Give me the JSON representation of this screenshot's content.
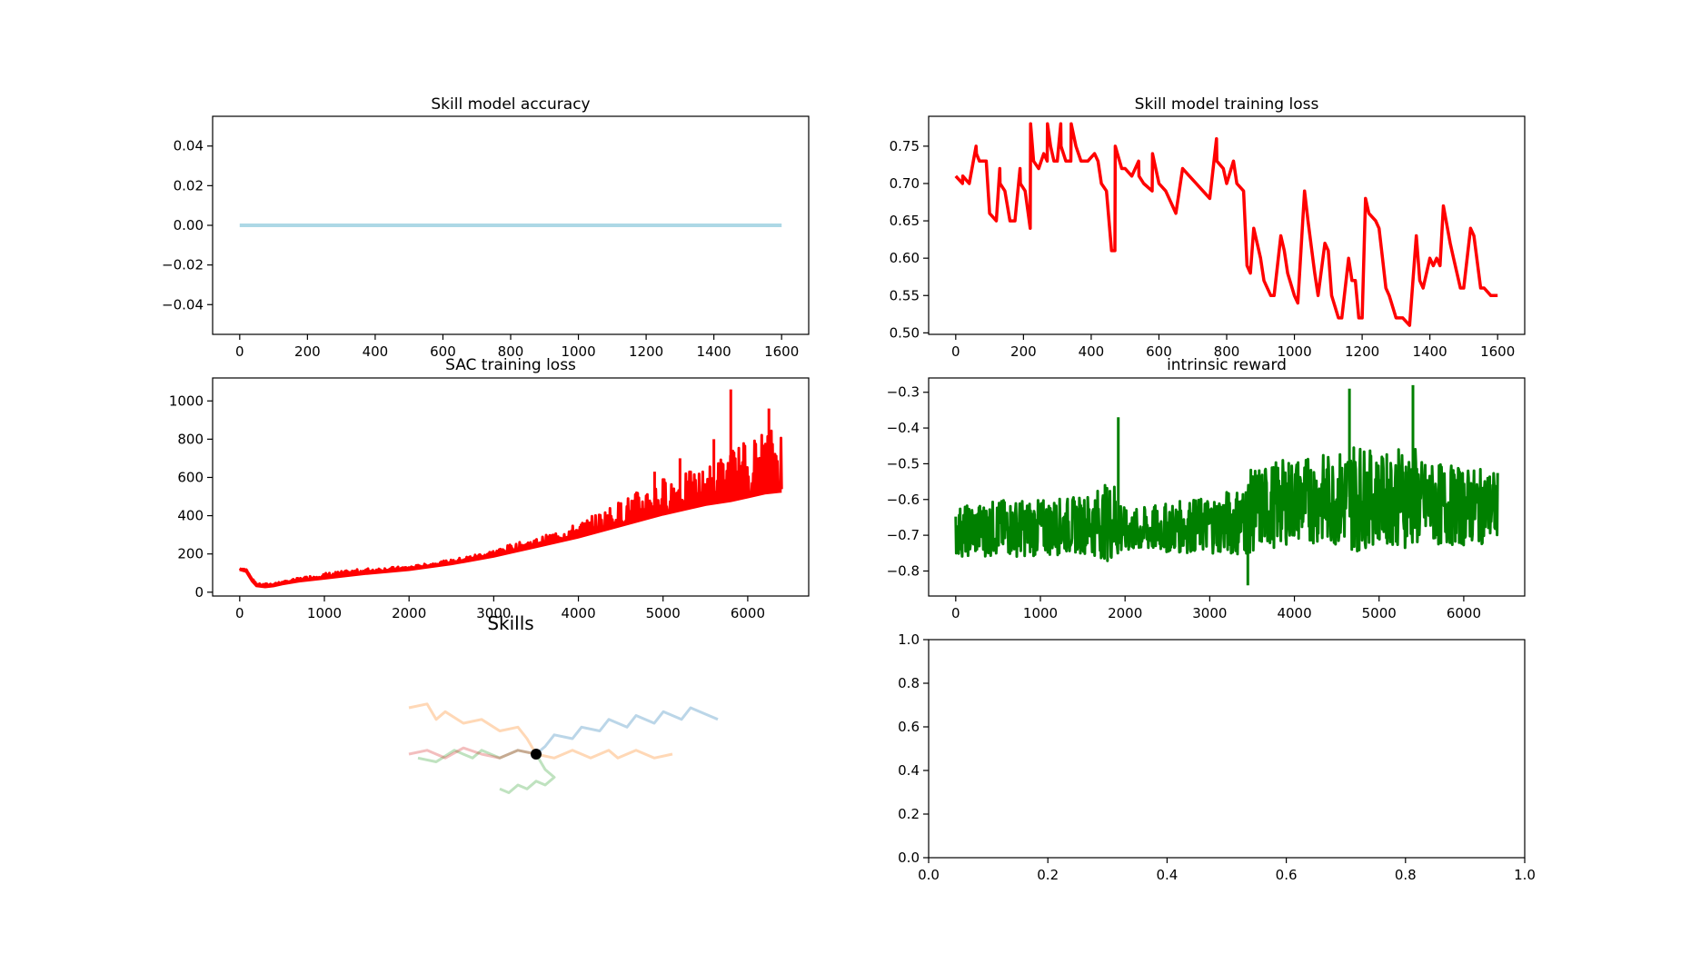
{
  "chart_data": [
    {
      "id": "skill-model-accuracy",
      "type": "line",
      "title": "Skill model accuracy",
      "xlabel": "",
      "ylabel": "",
      "xlim": [
        -80,
        1680
      ],
      "ylim": [
        -0.055,
        0.055
      ],
      "x_ticks": [
        0,
        200,
        400,
        600,
        800,
        1000,
        1200,
        1400,
        1600
      ],
      "y_ticks": [
        -0.04,
        -0.02,
        0.0,
        0.02,
        0.04
      ],
      "x_tick_labels": [
        "0",
        "200",
        "400",
        "600",
        "800",
        "1000",
        "1200",
        "1400",
        "1600"
      ],
      "y_tick_labels": [
        "−0.04",
        "−0.02",
        "0.00",
        "0.02",
        "0.04"
      ],
      "grid": false,
      "series": [
        {
          "color": "#add8e6",
          "x": [
            0,
            1600
          ],
          "values": [
            0.0,
            0.0
          ]
        }
      ]
    },
    {
      "id": "skill-model-training-loss",
      "type": "line",
      "title": "Skill model training loss",
      "xlabel": "",
      "ylabel": "",
      "xlim": [
        -80,
        1680
      ],
      "ylim": [
        0.498,
        0.79
      ],
      "x_ticks": [
        0,
        200,
        400,
        600,
        800,
        1000,
        1200,
        1400,
        1600
      ],
      "y_ticks": [
        0.5,
        0.55,
        0.6,
        0.65,
        0.7,
        0.75
      ],
      "x_tick_labels": [
        "0",
        "200",
        "400",
        "600",
        "800",
        "1000",
        "1200",
        "1400",
        "1600"
      ],
      "y_tick_labels": [
        "0.50",
        "0.55",
        "0.60",
        "0.65",
        "0.70",
        "0.75"
      ],
      "grid": false,
      "series": [
        {
          "color": "#ff0000",
          "x": [
            0,
            20,
            21,
            40,
            60,
            61,
            70,
            90,
            100,
            120,
            130,
            131,
            145,
            160,
            175,
            190,
            191,
            205,
            220,
            221,
            230,
            245,
            260,
            270,
            271,
            280,
            290,
            300,
            310,
            311,
            325,
            340,
            341,
            355,
            370,
            390,
            410,
            420,
            430,
            445,
            460,
            470,
            471,
            490,
            500,
            520,
            540,
            541,
            555,
            580,
            581,
            600,
            620,
            640,
            650,
            670,
            690,
            710,
            730,
            750,
            770,
            771,
            790,
            800,
            820,
            830,
            850,
            860,
            870,
            880,
            900,
            910,
            930,
            940,
            960,
            970,
            980,
            1000,
            1010,
            1030,
            1040,
            1060,
            1070,
            1090,
            1100,
            1110,
            1130,
            1140,
            1160,
            1170,
            1180,
            1190,
            1200,
            1210,
            1220,
            1240,
            1250,
            1260,
            1270,
            1280,
            1300,
            1320,
            1340,
            1360,
            1370,
            1380,
            1400,
            1410,
            1420,
            1430,
            1440,
            1460,
            1470,
            1490,
            1500,
            1520,
            1530,
            1550,
            1560,
            1580,
            1600
          ],
          "values": [
            0.71,
            0.7,
            0.71,
            0.7,
            0.75,
            0.74,
            0.73,
            0.73,
            0.66,
            0.65,
            0.72,
            0.7,
            0.69,
            0.65,
            0.65,
            0.72,
            0.7,
            0.69,
            0.64,
            0.78,
            0.73,
            0.72,
            0.74,
            0.73,
            0.78,
            0.75,
            0.73,
            0.73,
            0.78,
            0.75,
            0.73,
            0.73,
            0.78,
            0.75,
            0.73,
            0.73,
            0.74,
            0.73,
            0.7,
            0.69,
            0.61,
            0.61,
            0.75,
            0.72,
            0.72,
            0.71,
            0.73,
            0.71,
            0.7,
            0.69,
            0.74,
            0.7,
            0.69,
            0.67,
            0.66,
            0.72,
            0.71,
            0.7,
            0.69,
            0.68,
            0.76,
            0.73,
            0.72,
            0.7,
            0.73,
            0.7,
            0.69,
            0.59,
            0.58,
            0.64,
            0.6,
            0.57,
            0.55,
            0.55,
            0.63,
            0.61,
            0.58,
            0.55,
            0.54,
            0.69,
            0.65,
            0.58,
            0.55,
            0.62,
            0.61,
            0.55,
            0.52,
            0.52,
            0.6,
            0.57,
            0.57,
            0.52,
            0.52,
            0.68,
            0.66,
            0.65,
            0.64,
            0.6,
            0.56,
            0.55,
            0.52,
            0.52,
            0.51,
            0.63,
            0.57,
            0.56,
            0.6,
            0.59,
            0.6,
            0.59,
            0.67,
            0.62,
            0.6,
            0.56,
            0.56,
            0.64,
            0.63,
            0.56,
            0.56,
            0.55,
            0.55
          ]
        }
      ]
    },
    {
      "id": "sac-training-loss",
      "type": "line",
      "title": "SAC training loss",
      "xlabel": "",
      "ylabel": "",
      "xlim": [
        -320,
        6720
      ],
      "ylim": [
        -20,
        1120
      ],
      "x_ticks": [
        0,
        1000,
        2000,
        3000,
        4000,
        5000,
        6000
      ],
      "y_ticks": [
        0,
        200,
        400,
        600,
        800,
        1000
      ],
      "x_tick_labels": [
        "0",
        "1000",
        "2000",
        "3000",
        "4000",
        "5000",
        "6000"
      ],
      "y_tick_labels": [
        "0",
        "200",
        "400",
        "600",
        "800",
        "1000"
      ],
      "grid": false,
      "series": [
        {
          "color": "#ff0000",
          "x": [
            0,
            80,
            150,
            200,
            300,
            400,
            500,
            700,
            1000,
            1500,
            2000,
            2500,
            3000,
            3200,
            3500,
            4000,
            4500,
            5000,
            5500,
            5800,
            6000,
            6200,
            6400
          ],
          "values": [
            120,
            110,
            60,
            35,
            30,
            35,
            45,
            60,
            75,
            100,
            120,
            150,
            190,
            210,
            240,
            290,
            350,
            410,
            460,
            480,
            500,
            520,
            530
          ],
          "band_upper": [
            125,
            120,
            70,
            45,
            45,
            50,
            55,
            75,
            100,
            125,
            135,
            170,
            220,
            250,
            280,
            360,
            480,
            600,
            650,
            750,
            800,
            850,
            870
          ],
          "peaks": [
            {
              "x": 5800,
              "y": 1060
            },
            {
              "x": 6250,
              "y": 960
            },
            {
              "x": 5200,
              "y": 700
            },
            {
              "x": 4900,
              "y": 630
            },
            {
              "x": 5600,
              "y": 800
            }
          ]
        }
      ]
    },
    {
      "id": "intrinsic-reward",
      "type": "line",
      "title": "intrinsic reward",
      "xlabel": "",
      "ylabel": "",
      "xlim": [
        -320,
        6720
      ],
      "ylim": [
        -0.87,
        -0.26
      ],
      "x_ticks": [
        0,
        1000,
        2000,
        3000,
        4000,
        5000,
        6000
      ],
      "y_ticks": [
        -0.8,
        -0.7,
        -0.6,
        -0.5,
        -0.4,
        -0.3
      ],
      "x_tick_labels": [
        "0",
        "1000",
        "2000",
        "3000",
        "4000",
        "5000",
        "6000"
      ],
      "y_tick_labels": [
        "−0.8",
        "−0.7",
        "−0.6",
        "−0.5",
        "−0.4",
        "−0.3"
      ],
      "grid": false,
      "series": [
        {
          "color": "#008000",
          "x": [
            0,
            500,
            1000,
            1500,
            1900,
            2000,
            2500,
            3000,
            3400,
            3500,
            4000,
            4500,
            4700,
            5000,
            5400,
            5500,
            6000,
            6400
          ],
          "values": [
            -0.69,
            -0.68,
            -0.68,
            -0.67,
            -0.66,
            -0.69,
            -0.68,
            -0.67,
            -0.66,
            -0.63,
            -0.6,
            -0.6,
            -0.59,
            -0.6,
            -0.59,
            -0.61,
            -0.62,
            -0.62
          ],
          "band_half": [
            0.07,
            0.08,
            0.08,
            0.08,
            0.12,
            0.06,
            0.07,
            0.08,
            0.1,
            0.12,
            0.12,
            0.13,
            0.16,
            0.12,
            0.15,
            0.12,
            0.11,
            0.1
          ],
          "peaks": [
            {
              "x": 1920,
              "y": -0.37
            },
            {
              "x": 4650,
              "y": -0.29
            },
            {
              "x": 5400,
              "y": -0.28
            },
            {
              "x": 3450,
              "y": -0.84
            }
          ]
        }
      ]
    },
    {
      "id": "skills",
      "type": "line",
      "title": "Skills",
      "xlabel": "",
      "ylabel": "",
      "axis_visible": false,
      "xlim": [
        -1,
        1
      ],
      "ylim": [
        -1,
        1
      ],
      "origin_marker": {
        "x": 0,
        "y": 0,
        "color": "#000000"
      },
      "series": [
        {
          "color": "#1f77b4",
          "opacity": 0.3,
          "x": [
            0,
            0.05,
            0.1,
            0.2,
            0.25,
            0.35,
            0.4,
            0.5,
            0.55,
            0.65,
            0.7,
            0.8,
            0.85,
            0.95,
            1.0
          ],
          "values": [
            0,
            0.1,
            0.25,
            0.2,
            0.35,
            0.3,
            0.45,
            0.35,
            0.5,
            0.4,
            0.55,
            0.45,
            0.6,
            0.5,
            0.45
          ]
        },
        {
          "color": "#ff7f0e",
          "opacity": 0.3,
          "x": [
            0,
            -0.05,
            -0.1,
            -0.2,
            -0.3,
            -0.4,
            -0.5,
            -0.55,
            -0.6,
            -0.7
          ],
          "values": [
            0,
            0.2,
            0.35,
            0.3,
            0.45,
            0.4,
            0.55,
            0.45,
            0.65,
            0.6
          ]
        },
        {
          "color": "#ff7f0e",
          "opacity": 0.3,
          "x": [
            0,
            0.1,
            0.2,
            0.3,
            0.4,
            0.45,
            0.55,
            0.65,
            0.75
          ],
          "values": [
            0,
            -0.05,
            0.05,
            -0.05,
            0.05,
            -0.05,
            0.05,
            -0.05,
            0.0
          ]
        },
        {
          "color": "#2ca02c",
          "opacity": 0.3,
          "x": [
            0,
            -0.1,
            -0.2,
            -0.3,
            -0.35,
            -0.45,
            -0.55,
            -0.65
          ],
          "values": [
            0,
            0.05,
            -0.05,
            0.05,
            -0.05,
            0.05,
            -0.1,
            -0.05
          ]
        },
        {
          "color": "#2ca02c",
          "opacity": 0.3,
          "x": [
            0,
            0.05,
            0.1,
            0.05,
            0.0,
            -0.05,
            -0.1,
            -0.15,
            -0.2
          ],
          "values": [
            0,
            -0.2,
            -0.3,
            -0.4,
            -0.35,
            -0.45,
            -0.4,
            -0.5,
            -0.45
          ]
        },
        {
          "color": "#d62728",
          "opacity": 0.3,
          "x": [
            0,
            -0.1,
            -0.2,
            -0.3,
            -0.4,
            -0.5,
            -0.6,
            -0.7
          ],
          "values": [
            0,
            0.05,
            -0.05,
            0.0,
            0.08,
            -0.05,
            0.05,
            0.0
          ]
        }
      ]
    },
    {
      "id": "empty-axes",
      "type": "line",
      "title": "",
      "xlabel": "",
      "ylabel": "",
      "xlim": [
        0,
        1
      ],
      "ylim": [
        0,
        1
      ],
      "x_ticks": [
        0,
        0.2,
        0.4,
        0.6,
        0.8,
        1.0
      ],
      "y_ticks": [
        0,
        0.2,
        0.4,
        0.6,
        0.8,
        1.0
      ],
      "x_tick_labels": [
        "0.0",
        "0.2",
        "0.4",
        "0.6",
        "0.8",
        "1.0"
      ],
      "y_tick_labels": [
        "0.0",
        "0.2",
        "0.4",
        "0.6",
        "0.8",
        "1.0"
      ],
      "grid": false,
      "series": []
    }
  ]
}
